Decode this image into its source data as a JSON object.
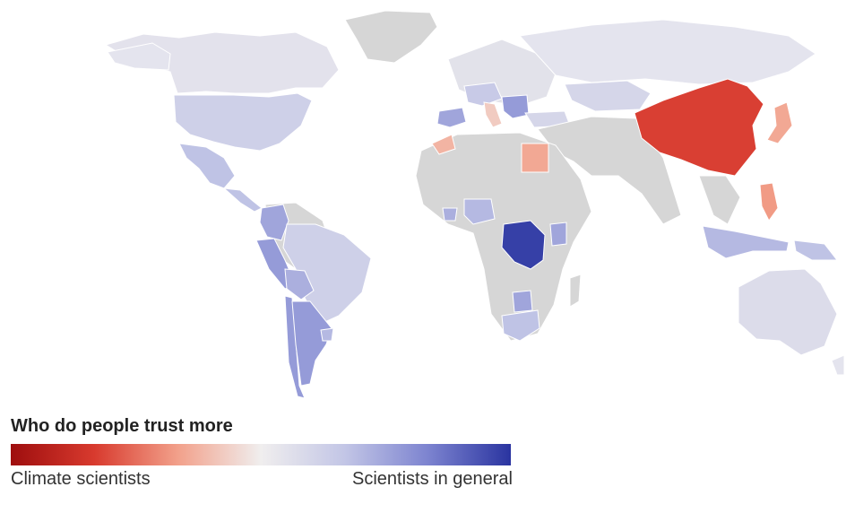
{
  "legend": {
    "title": "Who do people trust more",
    "left_label": "Climate scientists",
    "right_label": "Scientists in general",
    "scale_colors": [
      "#9e0e0e",
      "#d83a2e",
      "#f2a08a",
      "#f0eeee",
      "#c3c6e6",
      "#7d84d0",
      "#2a34a0"
    ]
  },
  "map": {
    "land_nodata_color": "#d6d6d6",
    "regions": [
      {
        "name": "Canada",
        "value": 0.1
      },
      {
        "name": "United States",
        "value": 0.25
      },
      {
        "name": "Mexico",
        "value": 0.35
      },
      {
        "name": "Central America",
        "value": 0.35
      },
      {
        "name": "Colombia",
        "value": 0.5
      },
      {
        "name": "Peru",
        "value": 0.55
      },
      {
        "name": "Brazil",
        "value": 0.25
      },
      {
        "name": "Bolivia",
        "value": 0.45
      },
      {
        "name": "Argentina",
        "value": 0.55
      },
      {
        "name": "Chile",
        "value": 0.55
      },
      {
        "name": "Uruguay",
        "value": 0.4
      },
      {
        "name": "Spain",
        "value": 0.5
      },
      {
        "name": "Morocco",
        "value": -0.25
      },
      {
        "name": "Egypt",
        "value": -0.3
      },
      {
        "name": "Central Europe",
        "value": 0.3
      },
      {
        "name": "Italy",
        "value": -0.15
      },
      {
        "name": "Balkans",
        "value": 0.55
      },
      {
        "name": "Turkey",
        "value": 0.2
      },
      {
        "name": "Kazakhstan",
        "value": 0.2
      },
      {
        "name": "China",
        "value": -0.65
      },
      {
        "name": "Japan",
        "value": -0.3
      },
      {
        "name": "Philippines",
        "value": -0.35
      },
      {
        "name": "Indonesia",
        "value": 0.4
      },
      {
        "name": "Papua New Guinea",
        "value": 0.35
      },
      {
        "name": "Australia",
        "value": 0.15
      },
      {
        "name": "DR Congo",
        "value": 0.95
      },
      {
        "name": "Kenya",
        "value": 0.5
      },
      {
        "name": "Nigeria",
        "value": 0.4
      },
      {
        "name": "Ghana",
        "value": 0.45
      },
      {
        "name": "Zimbabwe",
        "value": 0.5
      },
      {
        "name": "South Africa",
        "value": 0.35
      }
    ]
  }
}
